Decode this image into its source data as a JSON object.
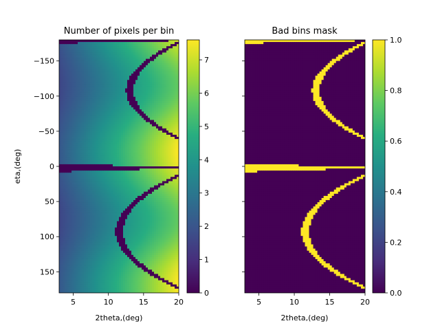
{
  "chart_data": [
    {
      "type": "heatmap",
      "title": "Number of pixels per bin",
      "xlabel": "2theta,(deg)",
      "ylabel": "eta,(deg)",
      "xlim": [
        3,
        20
      ],
      "ylim": [
        -180,
        180
      ],
      "y_inverted": true,
      "xticks": [
        5,
        10,
        15,
        20
      ],
      "yticks": [
        -150,
        -100,
        -50,
        0,
        50,
        100,
        150
      ],
      "colorbar": {
        "min": 0,
        "max": 7.6,
        "ticks": [
          0,
          1,
          2,
          3,
          4,
          5,
          6,
          7
        ],
        "colormap": "viridis"
      },
      "gaps": [
        {
          "kind": "band",
          "eta_center": -178,
          "thickness": 5
        },
        {
          "kind": "band",
          "eta_center": 3,
          "thickness": 9
        },
        {
          "kind": "arc",
          "vertex_2theta": 12.5,
          "eta_center": -108,
          "eta_halfwidth": 70,
          "width": 1.1
        },
        {
          "kind": "arc",
          "vertex_2theta": 11.0,
          "eta_center": 93,
          "eta_halfwidth": 75,
          "width": 1.1
        }
      ]
    },
    {
      "type": "heatmap",
      "title": "Bad bins mask",
      "xlabel": "2theta,(deg)",
      "ylabel": "",
      "xlim": [
        3,
        20
      ],
      "ylim": [
        -180,
        180
      ],
      "y_inverted": true,
      "xticks": [
        5,
        10,
        15,
        20
      ],
      "yticks": [
        -150,
        -100,
        -50,
        0,
        50,
        100,
        150
      ],
      "show_ytick_labels": false,
      "colorbar": {
        "min": 0,
        "max": 1,
        "ticks": [
          0.0,
          0.2,
          0.4,
          0.6,
          0.8,
          1.0
        ],
        "colormap": "viridis"
      },
      "values": "binary: 1 where left panel gap, 0 elsewhere"
    }
  ],
  "colors": {
    "viridis_low": "#440154",
    "viridis_high": "#fde725"
  }
}
